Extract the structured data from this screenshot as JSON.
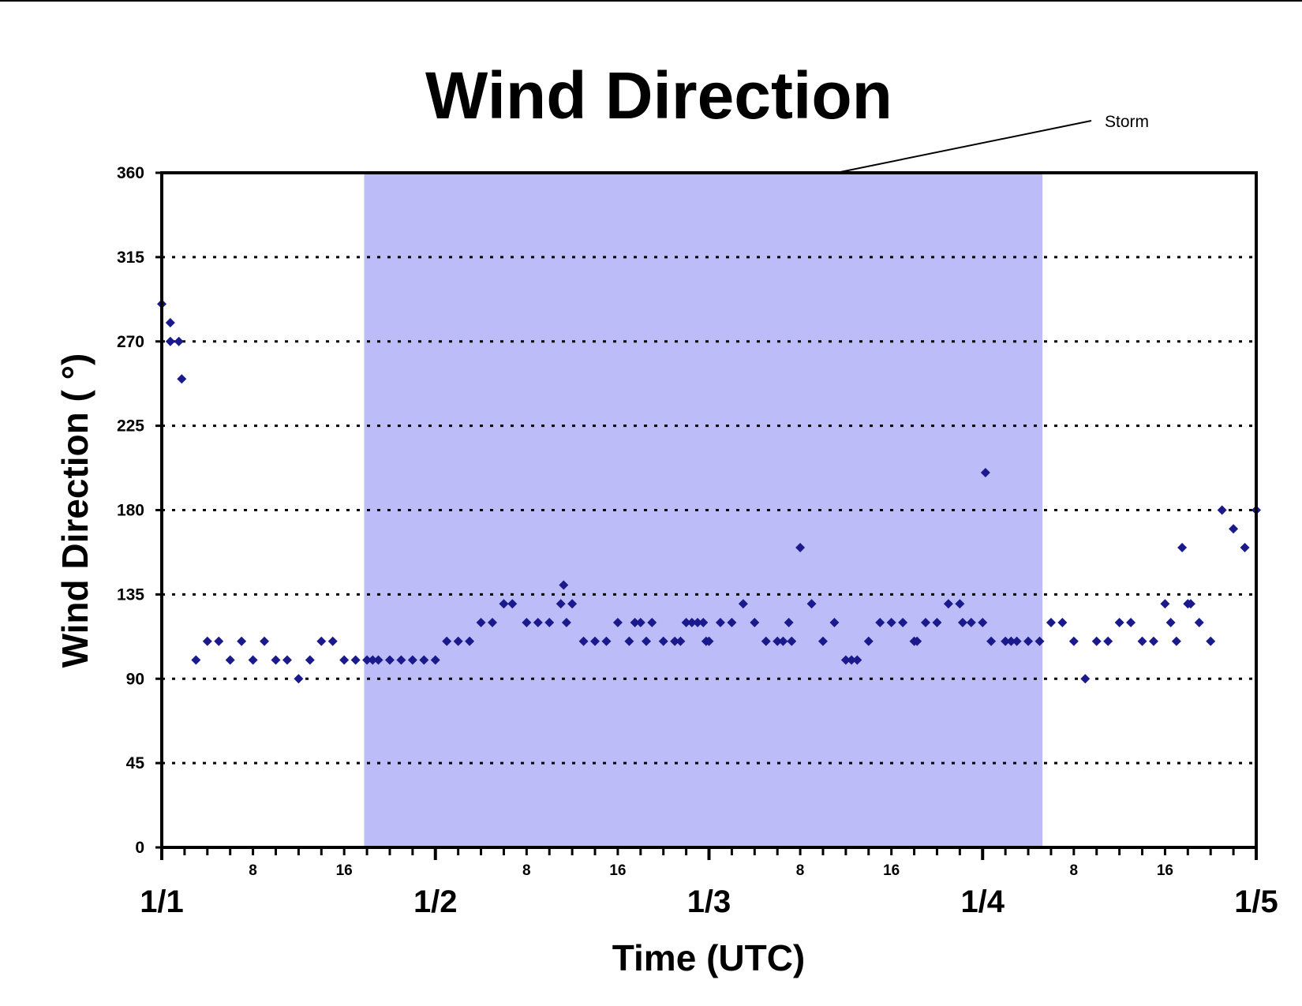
{
  "chart_data": {
    "type": "scatter",
    "title": "Wind Direction",
    "xlabel": "Time (UTC)",
    "ylabel": "Wind Direction ( °)",
    "ylim": [
      0,
      360
    ],
    "yticks": [
      0,
      45,
      90,
      135,
      180,
      225,
      270,
      315,
      360
    ],
    "xlim": [
      "1/1 00:00",
      "1/5 00:00"
    ],
    "x_day_labels": [
      "1/1",
      "1/2",
      "1/3",
      "1/4",
      "1/5"
    ],
    "x_hour_labels": [
      "8",
      "16"
    ],
    "grid": "horizontal dotted",
    "marker_color": "#1a1a8c",
    "annotation": {
      "text": "Storm",
      "shaded_from": "1/1 17:45",
      "shaded_to": "1/4 05:15",
      "shade_color": "#bcbcf9"
    },
    "series": [
      {
        "points": [
          [
            "1/1 00:00",
            290
          ],
          [
            "1/1 00:45",
            280
          ],
          [
            "1/1 00:45",
            270
          ],
          [
            "1/1 01:30",
            270
          ],
          [
            "1/1 01:45",
            250
          ],
          [
            "1/1 03:00",
            100
          ],
          [
            "1/1 04:00",
            110
          ],
          [
            "1/1 05:00",
            110
          ],
          [
            "1/1 06:00",
            100
          ],
          [
            "1/1 07:00",
            110
          ],
          [
            "1/1 08:00",
            100
          ],
          [
            "1/1 09:00",
            110
          ],
          [
            "1/1 10:00",
            100
          ],
          [
            "1/1 11:00",
            100
          ],
          [
            "1/1 12:00",
            90
          ],
          [
            "1/1 13:00",
            100
          ],
          [
            "1/1 14:00",
            110
          ],
          [
            "1/1 15:00",
            110
          ],
          [
            "1/1 16:00",
            100
          ],
          [
            "1/1 17:00",
            100
          ],
          [
            "1/1 18:00",
            100
          ],
          [
            "1/1 18:30",
            100
          ],
          [
            "1/1 19:00",
            100
          ],
          [
            "1/1 20:00",
            100
          ],
          [
            "1/1 21:00",
            100
          ],
          [
            "1/1 22:00",
            100
          ],
          [
            "1/1 23:00",
            100
          ],
          [
            "1/2 00:00",
            100
          ],
          [
            "1/2 01:00",
            110
          ],
          [
            "1/2 02:00",
            110
          ],
          [
            "1/2 03:00",
            110
          ],
          [
            "1/2 04:00",
            120
          ],
          [
            "1/2 05:00",
            120
          ],
          [
            "1/2 06:00",
            130
          ],
          [
            "1/2 06:45",
            130
          ],
          [
            "1/2 08:00",
            120
          ],
          [
            "1/2 09:00",
            120
          ],
          [
            "1/2 10:00",
            120
          ],
          [
            "1/2 11:00",
            130
          ],
          [
            "1/2 11:15",
            140
          ],
          [
            "1/2 11:30",
            120
          ],
          [
            "1/2 12:00",
            130
          ],
          [
            "1/2 13:00",
            110
          ],
          [
            "1/2 14:00",
            110
          ],
          [
            "1/2 15:00",
            110
          ],
          [
            "1/2 16:00",
            120
          ],
          [
            "1/2 17:00",
            110
          ],
          [
            "1/2 17:30",
            120
          ],
          [
            "1/2 18:00",
            120
          ],
          [
            "1/2 18:30",
            110
          ],
          [
            "1/2 19:00",
            120
          ],
          [
            "1/2 20:00",
            110
          ],
          [
            "1/2 21:00",
            110
          ],
          [
            "1/2 21:30",
            110
          ],
          [
            "1/2 22:00",
            120
          ],
          [
            "1/2 22:30",
            120
          ],
          [
            "1/2 23:00",
            120
          ],
          [
            "1/2 23:30",
            120
          ],
          [
            "1/2 23:45",
            110
          ],
          [
            "1/3 00:00",
            110
          ],
          [
            "1/3 01:00",
            120
          ],
          [
            "1/3 02:00",
            120
          ],
          [
            "1/3 03:00",
            130
          ],
          [
            "1/3 04:00",
            120
          ],
          [
            "1/3 05:00",
            110
          ],
          [
            "1/3 06:00",
            110
          ],
          [
            "1/3 06:30",
            110
          ],
          [
            "1/3 07:00",
            120
          ],
          [
            "1/3 07:15",
            110
          ],
          [
            "1/3 08:00",
            160
          ],
          [
            "1/3 09:00",
            130
          ],
          [
            "1/3 10:00",
            110
          ],
          [
            "1/3 11:00",
            120
          ],
          [
            "1/3 12:00",
            100
          ],
          [
            "1/3 12:30",
            100
          ],
          [
            "1/3 13:00",
            100
          ],
          [
            "1/3 14:00",
            110
          ],
          [
            "1/3 15:00",
            120
          ],
          [
            "1/3 16:00",
            120
          ],
          [
            "1/3 17:00",
            120
          ],
          [
            "1/3 18:00",
            110
          ],
          [
            "1/3 18:15",
            110
          ],
          [
            "1/3 19:00",
            120
          ],
          [
            "1/3 20:00",
            120
          ],
          [
            "1/3 21:00",
            130
          ],
          [
            "1/3 22:00",
            130
          ],
          [
            "1/3 22:15",
            120
          ],
          [
            "1/3 23:00",
            120
          ],
          [
            "1/4 00:00",
            120
          ],
          [
            "1/4 00:15",
            200
          ],
          [
            "1/4 00:45",
            110
          ],
          [
            "1/4 02:00",
            110
          ],
          [
            "1/4 02:30",
            110
          ],
          [
            "1/4 03:00",
            110
          ],
          [
            "1/4 04:00",
            110
          ],
          [
            "1/4 05:00",
            110
          ],
          [
            "1/4 06:00",
            120
          ],
          [
            "1/4 07:00",
            120
          ],
          [
            "1/4 08:00",
            110
          ],
          [
            "1/4 09:00",
            90
          ],
          [
            "1/4 10:00",
            110
          ],
          [
            "1/4 11:00",
            110
          ],
          [
            "1/4 12:00",
            120
          ],
          [
            "1/4 13:00",
            120
          ],
          [
            "1/4 14:00",
            110
          ],
          [
            "1/4 15:00",
            110
          ],
          [
            "1/4 16:00",
            130
          ],
          [
            "1/4 16:30",
            120
          ],
          [
            "1/4 17:00",
            110
          ],
          [
            "1/4 17:30",
            160
          ],
          [
            "1/4 18:00",
            130
          ],
          [
            "1/4 18:15",
            130
          ],
          [
            "1/4 19:00",
            120
          ],
          [
            "1/4 20:00",
            110
          ],
          [
            "1/4 21:00",
            180
          ],
          [
            "1/4 22:00",
            170
          ],
          [
            "1/4 23:00",
            160
          ],
          [
            "1/5 00:00",
            180
          ]
        ]
      }
    ]
  }
}
